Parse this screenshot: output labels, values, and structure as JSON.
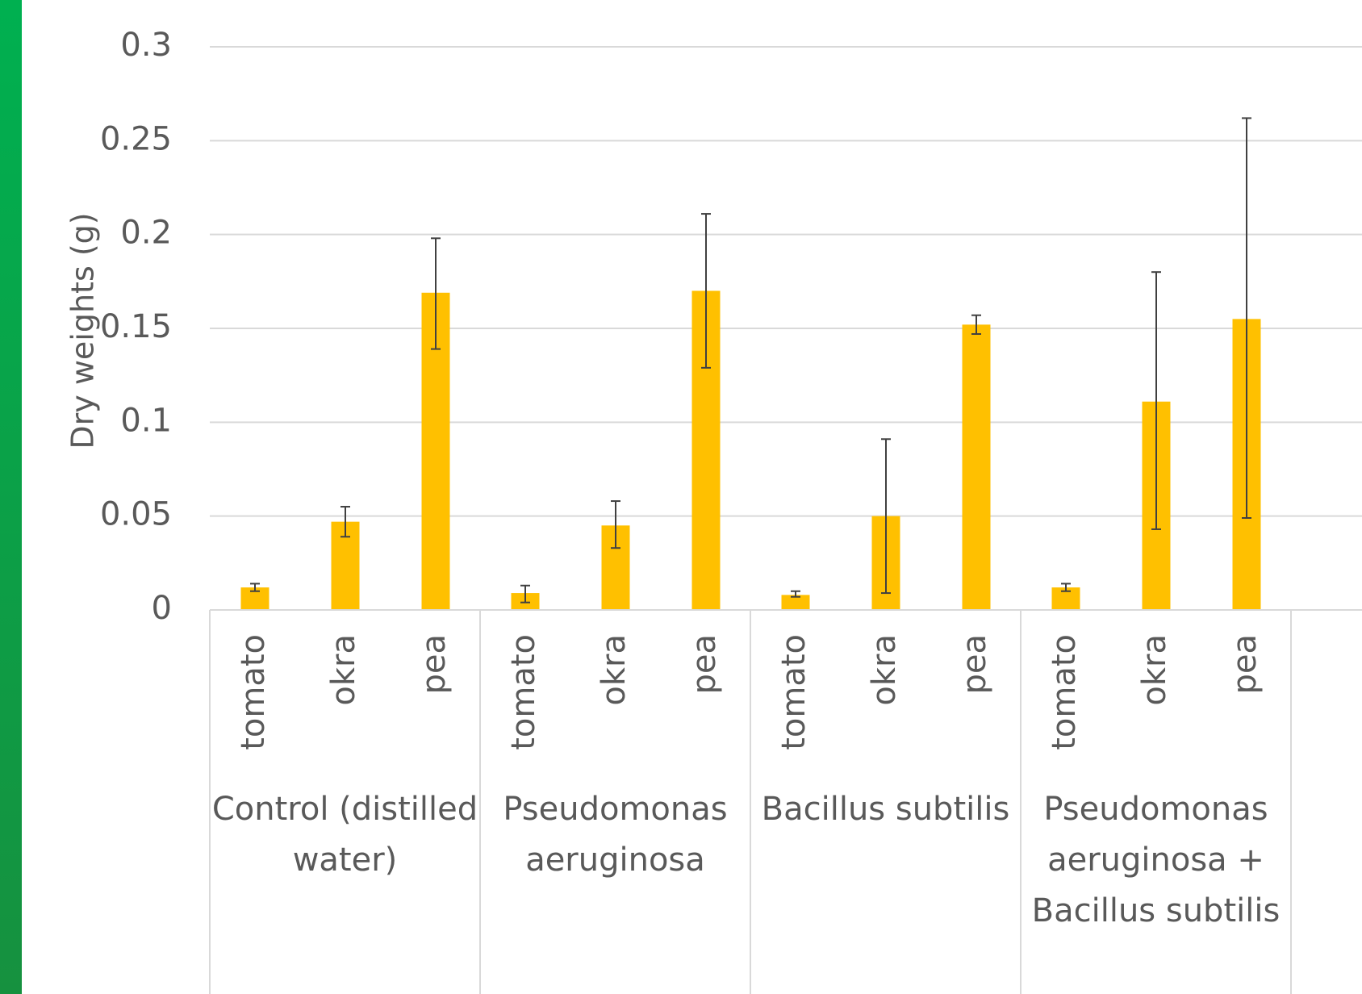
{
  "colors": {
    "bar": "#FFC000",
    "grid": "#D9D9D9",
    "text": "#595959",
    "stripe_top": "#00B050",
    "stripe_bottom": "#16913F"
  },
  "chart_data": {
    "type": "bar",
    "title": "",
    "xlabel": "",
    "ylabel": "Dry weights (g)",
    "ylim": [
      0,
      0.3
    ],
    "yticks": [
      "0",
      "0.05",
      "0.1",
      "0.15",
      "0.2",
      "0.25",
      "0.3"
    ],
    "grid": true,
    "groups": [
      {
        "label": "Control (distilled water)",
        "label_lines": [
          "Control (distilled",
          "water)"
        ]
      },
      {
        "label": "Pseudomonas aeruginosa",
        "label_lines": [
          "Pseudomonas",
          "aeruginosa"
        ]
      },
      {
        "label": "Bacillus subtilis",
        "label_lines": [
          "Bacillus subtilis"
        ]
      },
      {
        "label": "Pseudomonas aeruginosa + Bacillus subtilis",
        "label_lines": [
          "Pseudomonas",
          "aeruginosa +",
          "Bacillus subtilis"
        ]
      }
    ],
    "bars": [
      {
        "group": 0,
        "category": "tomato",
        "value": 0.012,
        "err_low": 0.01,
        "err_high": 0.014
      },
      {
        "group": 0,
        "category": "okra",
        "value": 0.047,
        "err_low": 0.039,
        "err_high": 0.055
      },
      {
        "group": 0,
        "category": "pea",
        "value": 0.169,
        "err_low": 0.139,
        "err_high": 0.198
      },
      {
        "group": 1,
        "category": "tomato",
        "value": 0.009,
        "err_low": 0.004,
        "err_high": 0.013
      },
      {
        "group": 1,
        "category": "okra",
        "value": 0.045,
        "err_low": 0.033,
        "err_high": 0.058
      },
      {
        "group": 1,
        "category": "pea",
        "value": 0.17,
        "err_low": 0.129,
        "err_high": 0.211
      },
      {
        "group": 2,
        "category": "tomato",
        "value": 0.008,
        "err_low": 0.007,
        "err_high": 0.01
      },
      {
        "group": 2,
        "category": "okra",
        "value": 0.05,
        "err_low": 0.009,
        "err_high": 0.091
      },
      {
        "group": 2,
        "category": "pea",
        "value": 0.152,
        "err_low": 0.147,
        "err_high": 0.157
      },
      {
        "group": 3,
        "category": "tomato",
        "value": 0.012,
        "err_low": 0.01,
        "err_high": 0.014
      },
      {
        "group": 3,
        "category": "okra",
        "value": 0.111,
        "err_low": 0.043,
        "err_high": 0.18
      },
      {
        "group": 3,
        "category": "pea",
        "value": 0.155,
        "err_low": 0.049,
        "err_high": 0.262
      }
    ]
  }
}
